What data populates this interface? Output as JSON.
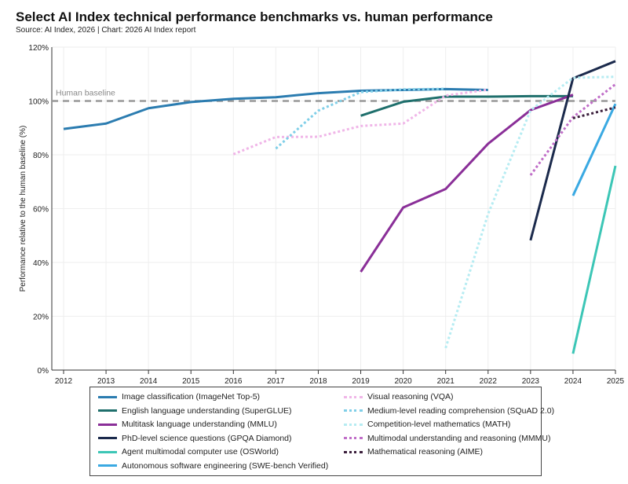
{
  "title": "Select AI Index technical performance benchmarks vs. human performance",
  "subtitle": "Source: AI Index, 2026 | Chart: 2026 AI Index report",
  "chart_data": {
    "type": "line",
    "title": "Select AI Index technical performance benchmarks vs. human performance",
    "xlabel": "",
    "ylabel": "Performance relative to the human baseline (%)",
    "xlim": [
      2012,
      2025
    ],
    "ylim": [
      0,
      120
    ],
    "x_ticks": [
      "2012",
      "2013",
      "2014",
      "2015",
      "2016",
      "2017",
      "2018",
      "2019",
      "2020",
      "2021",
      "2022",
      "2023",
      "2024",
      "2025"
    ],
    "y_ticks": [
      "0%",
      "20%",
      "40%",
      "60%",
      "80%",
      "100%",
      "120%"
    ],
    "grid": true,
    "legend_position": "bottom",
    "reference_line": {
      "label": "Human baseline",
      "value": 100,
      "color": "#999999"
    },
    "series": [
      {
        "name": "Image classification (ImageNet Top-5)",
        "style": "solid",
        "color": "#2b7cb0",
        "x": [
          2012,
          2013,
          2014,
          2015,
          2016,
          2017,
          2018,
          2019,
          2020,
          2021,
          2022
        ],
        "values": [
          89.6,
          91.6,
          97.3,
          99.6,
          100.8,
          101.4,
          102.9,
          103.8,
          104.1,
          104.4,
          104.1
        ]
      },
      {
        "name": "English language understanding (SuperGLUE)",
        "style": "solid",
        "color": "#1f6f6c",
        "x": [
          2019,
          2020,
          2021,
          2022,
          2023,
          2024
        ],
        "values": [
          94.5,
          99.7,
          101.6,
          101.6,
          101.8,
          101.8
        ]
      },
      {
        "name": "Multitask language understanding (MMLU)",
        "style": "solid",
        "color": "#8a2f98",
        "x": [
          2019,
          2020,
          2021,
          2022,
          2023,
          2024
        ],
        "values": [
          36.5,
          60.4,
          67.3,
          84.1,
          96.6,
          102.3
        ]
      },
      {
        "name": "PhD-level science questions (GPQA Diamond)",
        "style": "solid",
        "color": "#1b2a4c",
        "x": [
          2023,
          2024,
          2025
        ],
        "values": [
          48.2,
          108.4,
          114.8
        ]
      },
      {
        "name": "Agent multimodal computer use (OSWorld)",
        "style": "solid",
        "color": "#3cc6b6",
        "x": [
          2024,
          2025
        ],
        "values": [
          6.1,
          75.9
        ]
      },
      {
        "name": "Autonomous software engineering (SWE-bench Verified)",
        "style": "solid",
        "color": "#3aa9e2",
        "x": [
          2024,
          2025
        ],
        "values": [
          64.8,
          98.9
        ]
      },
      {
        "name": "Visual reasoning (VQA)",
        "style": "dotted",
        "color": "#f0b6e8",
        "x": [
          2016,
          2017,
          2018,
          2019,
          2020,
          2021,
          2022
        ],
        "values": [
          80.2,
          86.6,
          86.7,
          90.7,
          91.6,
          102.0,
          104.2
        ]
      },
      {
        "name": "Medium-level reading comprehension (SQuAD 2.0)",
        "style": "dotted",
        "color": "#80cfe8",
        "x": [
          2017,
          2018,
          2019,
          2020,
          2021
        ],
        "values": [
          82.3,
          96.4,
          103.3,
          104.3,
          104.5
        ]
      },
      {
        "name": "Competition-level mathematics (MATH)",
        "style": "dotted",
        "color": "#b6ecf2",
        "x": [
          2021,
          2022,
          2023,
          2024,
          2025
        ],
        "values": [
          8.2,
          58.0,
          96.5,
          108.6,
          109.0
        ]
      },
      {
        "name": "Multimodal understanding and reasoning (MMMU)",
        "style": "dotted",
        "color": "#c06ec8",
        "x": [
          2023,
          2024,
          2025
        ],
        "values": [
          72.4,
          94.0,
          106.2
        ]
      },
      {
        "name": "Mathematical reasoning (AIME)",
        "style": "dotted",
        "color": "#3b1f3c",
        "x": [
          2024,
          2025
        ],
        "values": [
          93.6,
          97.6
        ]
      }
    ]
  }
}
